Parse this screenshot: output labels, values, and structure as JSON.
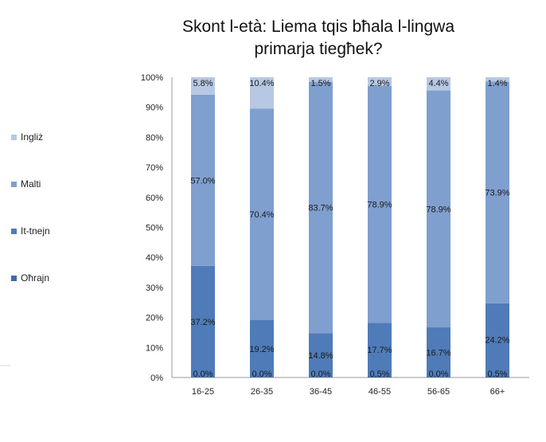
{
  "chart_data": {
    "type": "bar",
    "stacked": true,
    "title_lines": [
      "Skont l-età: Liema tqis bħala l-lingwa",
      "primarja tiegħek?"
    ],
    "categories": [
      "16-25",
      "26-35",
      "36-45",
      "46-55",
      "56-65",
      "66+"
    ],
    "series": [
      {
        "name": "Oħrajn",
        "values": [
          0.0,
          0.0,
          0.0,
          0.5,
          0.0,
          0.5
        ],
        "color": "#3e6aa8"
      },
      {
        "name": "It-tnejn",
        "values": [
          37.2,
          19.2,
          14.8,
          17.7,
          16.7,
          24.2
        ],
        "color": "#4f7cb9"
      },
      {
        "name": "Malti",
        "values": [
          57.0,
          70.4,
          83.7,
          78.9,
          78.9,
          73.9
        ],
        "color": "#7f9fcf"
      },
      {
        "name": "Ingliż",
        "values": [
          5.8,
          10.4,
          1.5,
          2.9,
          4.4,
          1.4
        ],
        "color": "#b7c8e4"
      }
    ],
    "value_labels": [
      [
        "0.0%",
        "0.0%",
        "0.0%",
        "0.5%",
        "0.0%",
        "0.5%"
      ],
      [
        "37.2%",
        "19.2%",
        "14.8%",
        "17.7%",
        "16.7%",
        "24.2%"
      ],
      [
        "57.0%",
        "70.4%",
        "83.7%",
        "78.9%",
        "78.9%",
        "73.9%"
      ],
      [
        "5.8%",
        "10.4%",
        "1.5%",
        "2.9%",
        "4.4%",
        "1.4%"
      ]
    ],
    "y_ticks": [
      "0%",
      "10%",
      "20%",
      "30%",
      "40%",
      "50%",
      "60%",
      "70%",
      "80%",
      "90%",
      "100%"
    ],
    "ylim": [
      0,
      100
    ],
    "legend_order": [
      "Ingliż",
      "Malti",
      "It-tnejn",
      "Oħrajn"
    ],
    "legend_position": "left",
    "grid": false
  }
}
